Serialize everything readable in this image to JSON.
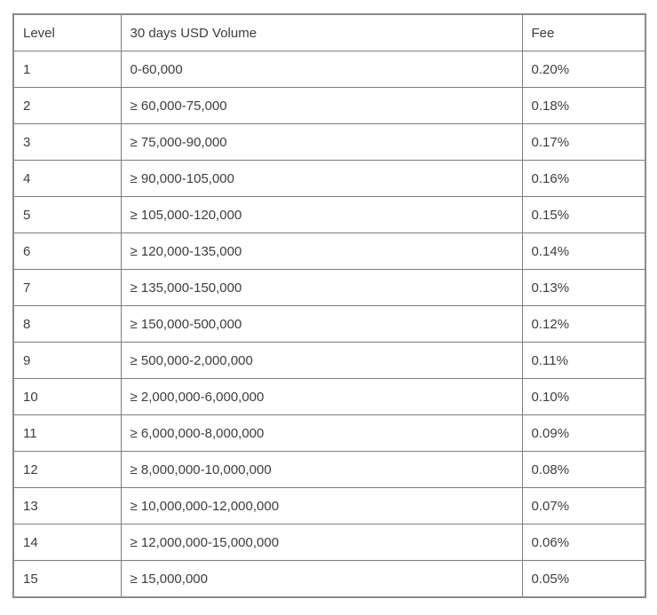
{
  "table": {
    "columns": [
      {
        "key": "level",
        "label": "Level"
      },
      {
        "key": "volume",
        "label": "30 days USD Volume"
      },
      {
        "key": "fee",
        "label": "Fee"
      }
    ],
    "rows": [
      {
        "level": "1",
        "volume": "0-60,000",
        "fee": "0.20%"
      },
      {
        "level": "2",
        "volume": "≥ 60,000-75,000",
        "fee": "0.18%"
      },
      {
        "level": "3",
        "volume": "≥ 75,000-90,000",
        "fee": "0.17%"
      },
      {
        "level": "4",
        "volume": "≥ 90,000-105,000",
        "fee": "0.16%"
      },
      {
        "level": "5",
        "volume": "≥ 105,000-120,000",
        "fee": "0.15%"
      },
      {
        "level": "6",
        "volume": "≥ 120,000-135,000",
        "fee": "0.14%"
      },
      {
        "level": "7",
        "volume": "≥ 135,000-150,000",
        "fee": "0.13%"
      },
      {
        "level": "8",
        "volume": "≥ 150,000-500,000",
        "fee": "0.12%"
      },
      {
        "level": "9",
        "volume": "≥ 500,000-2,000,000",
        "fee": "0.11%"
      },
      {
        "level": "10",
        "volume": "≥ 2,000,000-6,000,000",
        "fee": "0.10%"
      },
      {
        "level": "11",
        "volume": "≥ 6,000,000-8,000,000",
        "fee": "0.09%"
      },
      {
        "level": "12",
        "volume": "≥ 8,000,000-10,000,000",
        "fee": "0.08%"
      },
      {
        "level": "13",
        "volume": "≥ 10,000,000-12,000,000",
        "fee": "0.07%"
      },
      {
        "level": "14",
        "volume": "≥ 12,000,000-15,000,000",
        "fee": "0.06%"
      },
      {
        "level": "15",
        "volume": "≥ 15,000,000",
        "fee": "0.05%"
      }
    ],
    "colors": {
      "border_outer": "#8a8a8a",
      "border_inner": "#7d7d7d",
      "text": "#3d3d3d",
      "background": "#ffffff"
    }
  }
}
